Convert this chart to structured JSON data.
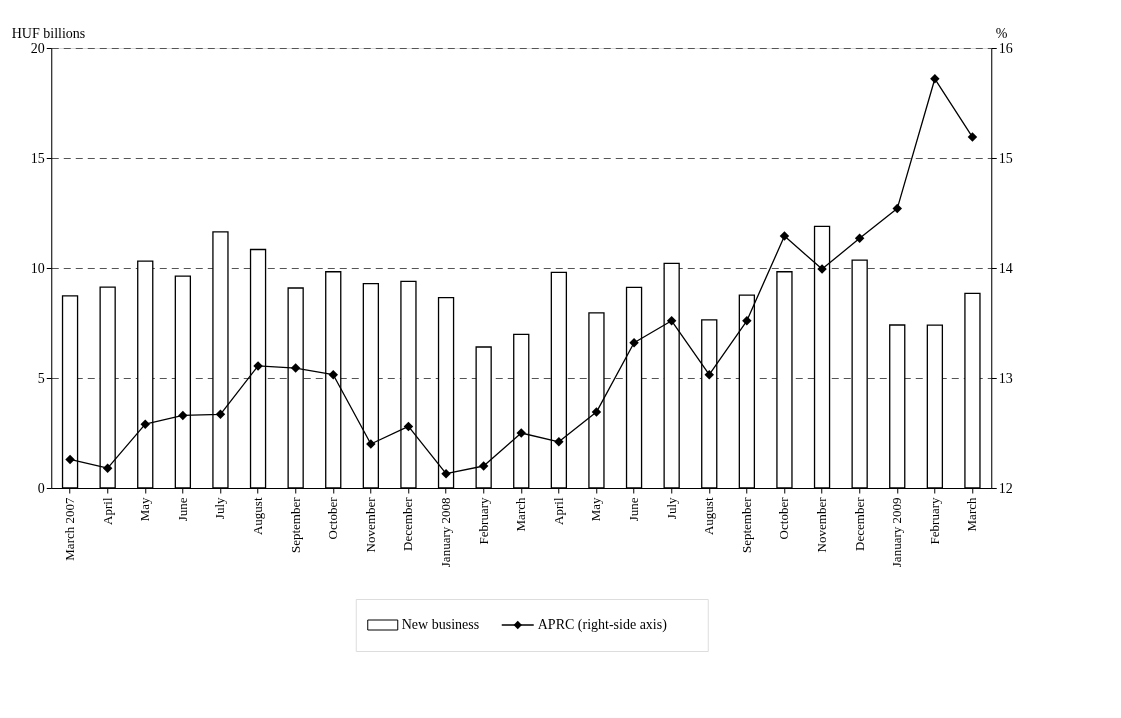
{
  "chart_data": {
    "type": "bar",
    "categories": [
      "March 2007",
      "April",
      "May",
      "June",
      "July",
      "August",
      "September",
      "October",
      "November",
      "December",
      "January 2008",
      "February",
      "March",
      "April",
      "May",
      "June",
      "July",
      "August",
      "September",
      "October",
      "November",
      "December",
      "January 2009",
      "February",
      "March"
    ],
    "series": [
      {
        "name": "New business",
        "color": "#ffffff",
        "values": [
          8.73,
          9.13,
          10.31,
          9.63,
          11.64,
          10.84,
          9.09,
          9.83,
          9.29,
          9.39,
          8.65,
          6.41,
          6.98,
          9.8,
          7.96,
          9.12,
          10.21,
          7.64,
          8.77,
          9.83,
          11.89,
          10.36,
          7.41,
          7.4,
          8.85
        ]
      },
      {
        "name": "APRC (right-side axis)",
        "type": "line",
        "axis": "y2",
        "color": "#000000",
        "marker": "diamond",
        "values": [
          12.26,
          12.18,
          12.58,
          12.66,
          12.67,
          13.11,
          13.09,
          13.03,
          12.4,
          12.56,
          12.13,
          12.2,
          12.5,
          12.42,
          12.69,
          13.32,
          13.52,
          13.03,
          13.52,
          14.29,
          13.99,
          14.27,
          14.54,
          15.72,
          15.19
        ]
      }
    ],
    "ylabel": "HUF billions",
    "y2label": "%",
    "ylim": [
      0,
      20
    ],
    "yticks": [
      0,
      5,
      10,
      15,
      20
    ],
    "y2lim": [
      12,
      16
    ],
    "y2ticks": [
      12,
      13,
      14,
      15,
      16
    ],
    "grid": "y",
    "legend": "bottom"
  }
}
